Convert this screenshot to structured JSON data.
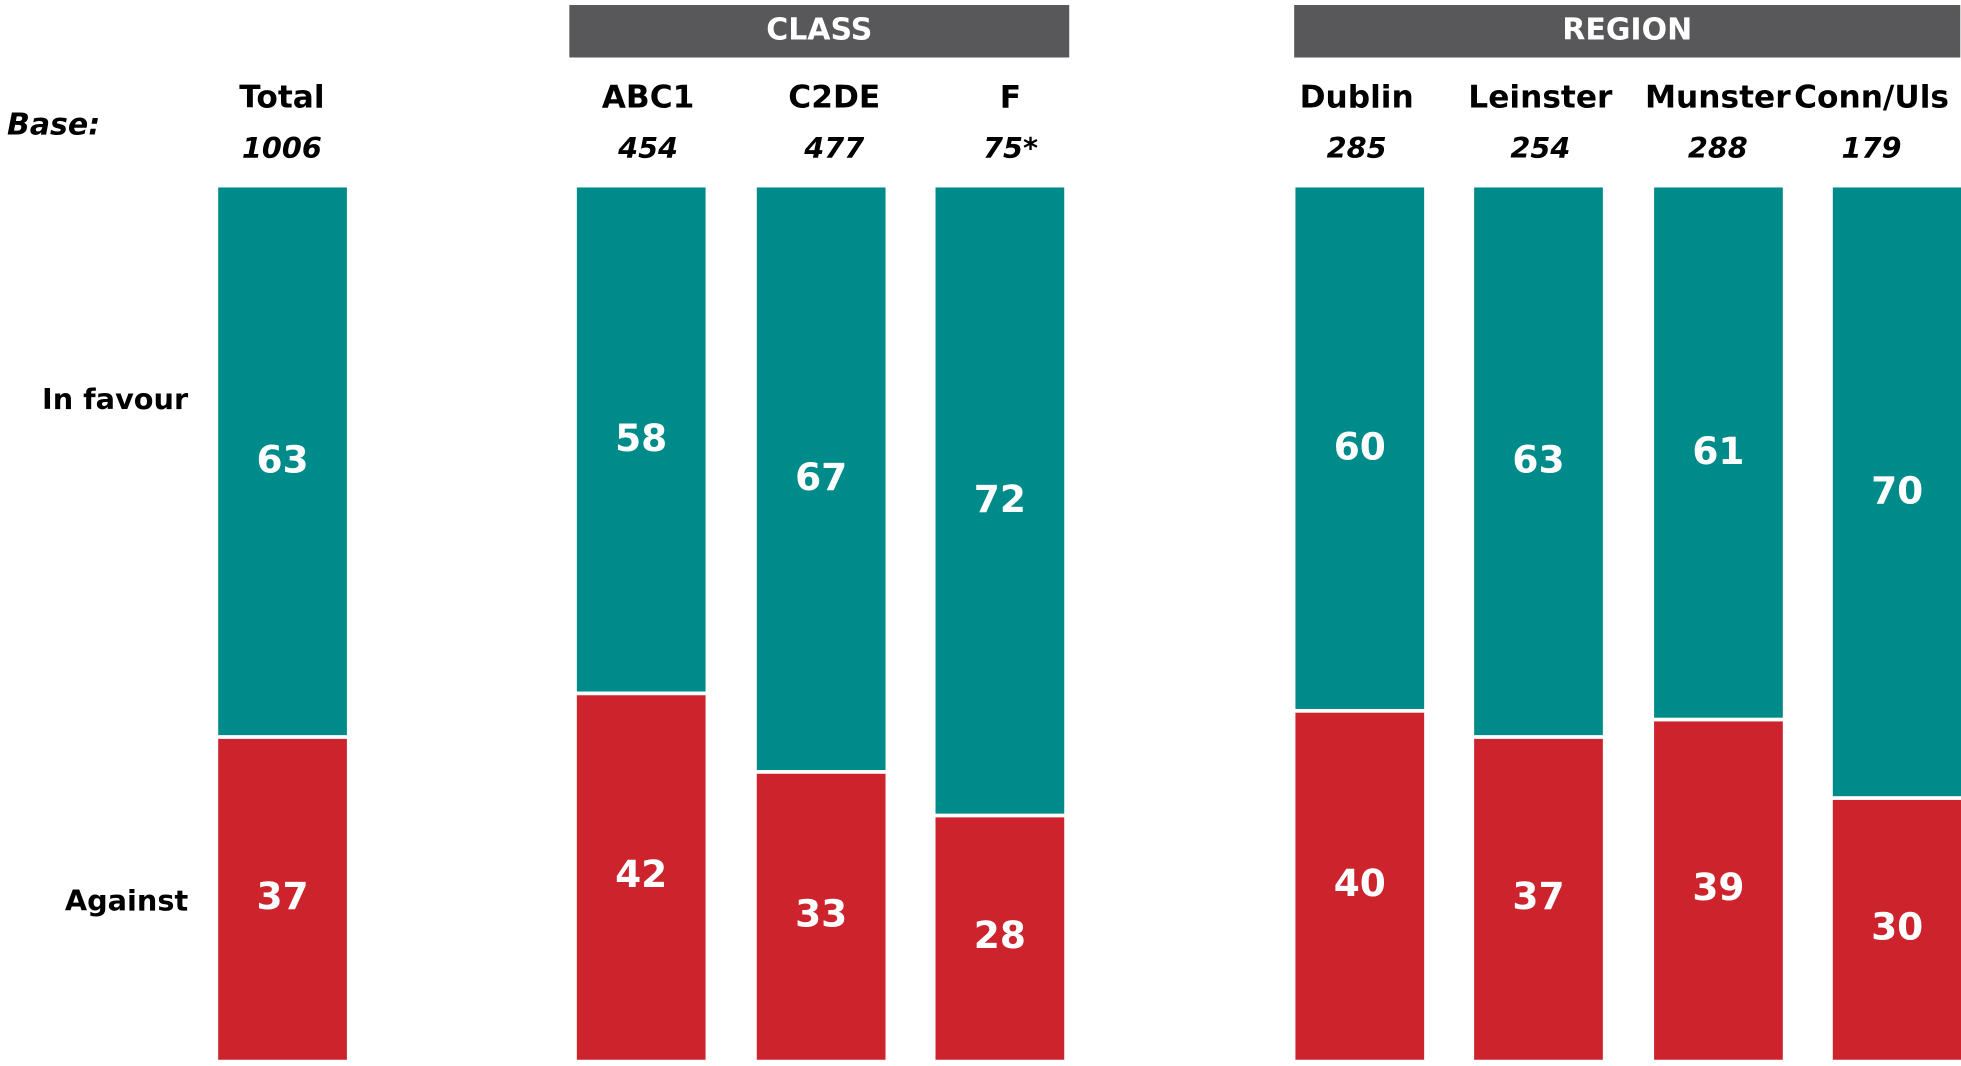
{
  "chart_data": {
    "type": "stacked_bar",
    "base_label": "Base:",
    "groups": [
      "CLASS",
      "REGION"
    ],
    "categories": [
      "Total",
      "ABC1",
      "C2DE",
      "F",
      "Dublin",
      "Leinster",
      "Munster",
      "Conn/Uls"
    ],
    "bases": [
      1006,
      454,
      477,
      {
        "value": 75,
        "label": "75*"
      },
      285,
      254,
      288,
      179
    ],
    "ylim": [
      0,
      100
    ],
    "series": [
      {
        "name": "In favour",
        "color": "#008b8b",
        "values": [
          63,
          58,
          67,
          72,
          60,
          63,
          61,
          70
        ]
      },
      {
        "name": "Against",
        "color": "#cc232d",
        "values": [
          37,
          42,
          33,
          28,
          40,
          37,
          39,
          30
        ]
      }
    ]
  }
}
